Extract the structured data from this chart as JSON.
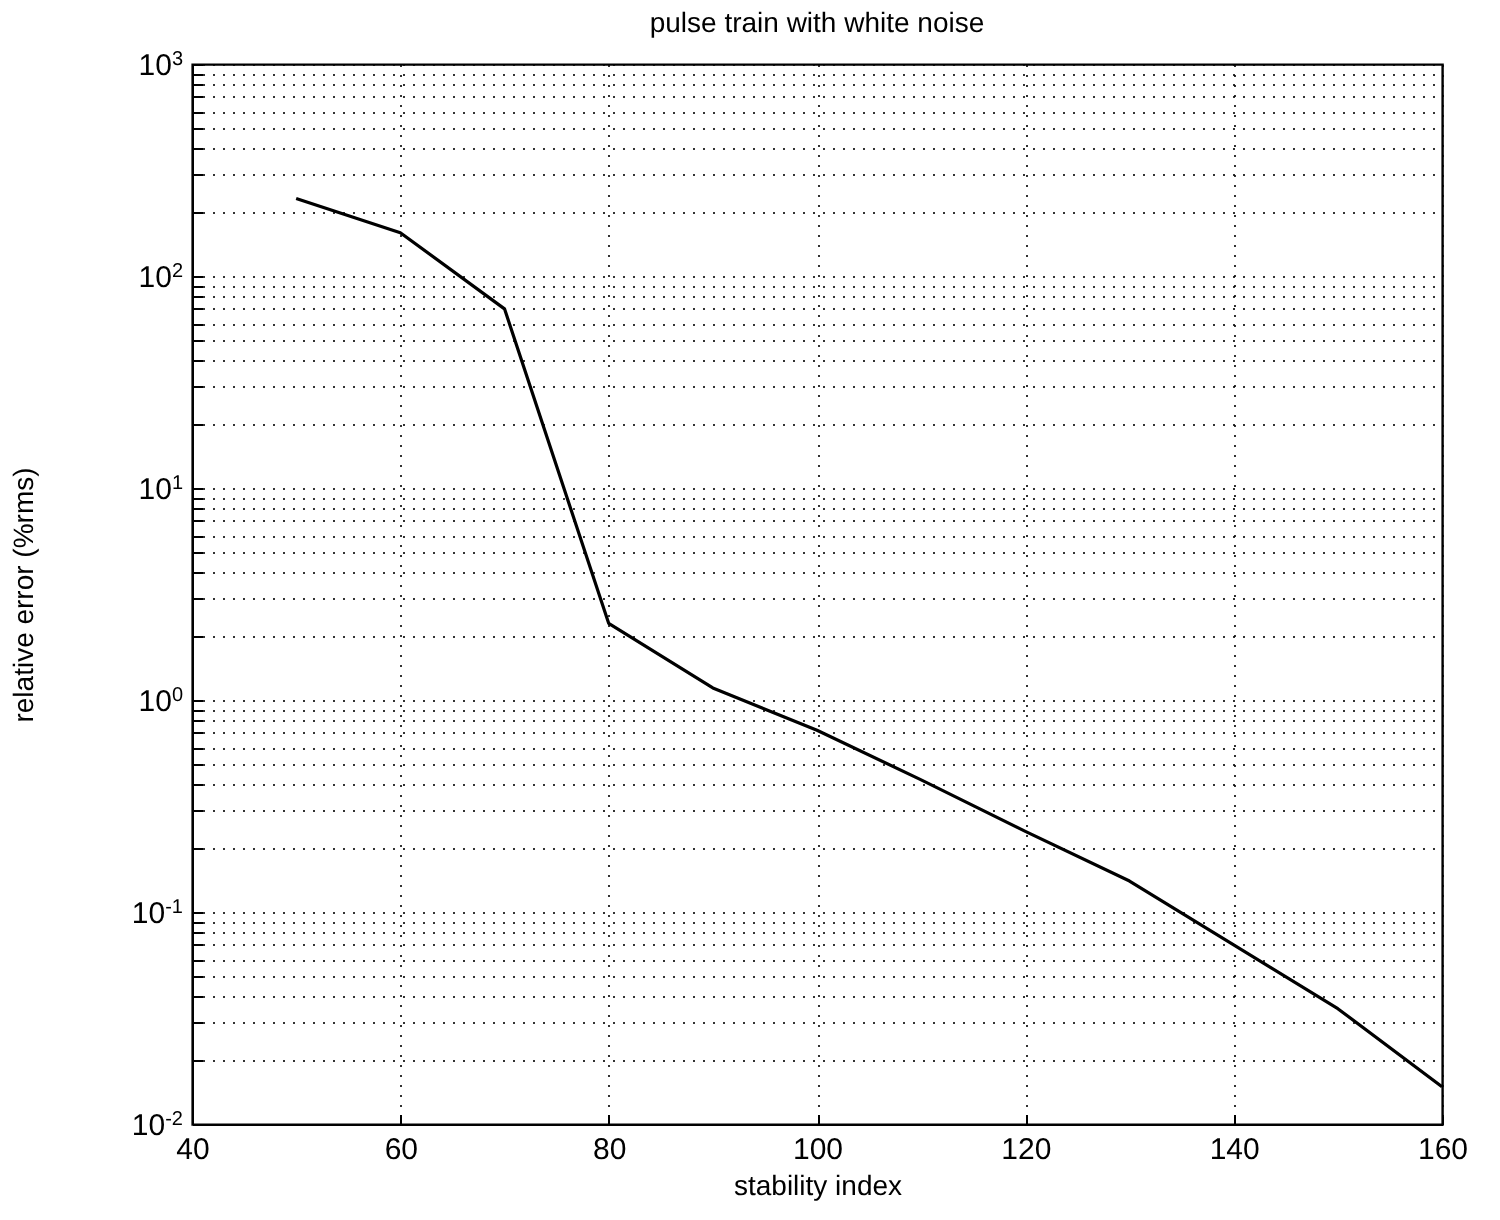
{
  "chart_data": {
    "type": "line",
    "title": "pulse train with white noise",
    "xlabel": "stability index",
    "ylabel": "relative error (%rms)",
    "x": [
      50,
      60,
      70,
      80,
      90,
      100,
      110,
      120,
      130,
      140,
      150,
      160
    ],
    "series": [
      {
        "color": "#000000",
        "values": [
          232,
          160,
          70,
          2.3,
          1.14,
          0.72,
          0.42,
          0.24,
          0.14,
          0.07,
          0.035,
          0.015
        ]
      }
    ],
    "xlim": [
      40,
      160
    ],
    "xticks": [
      40,
      60,
      80,
      100,
      120,
      140,
      160
    ],
    "ylim": [
      0.01,
      1000
    ],
    "log": true,
    "grid": true,
    "line_style": "solid",
    "marker": "none",
    "yticks": [
      {
        "value": 0.01,
        "label": "10$^{-2}$"
      },
      {
        "value": 0.02,
        "label": null
      },
      {
        "value": 0.03,
        "label": null
      },
      {
        "value": 0.04,
        "label": null
      },
      {
        "value": 0.05,
        "label": null
      },
      {
        "value": 0.06,
        "label": null
      },
      {
        "value": 0.07,
        "label": null
      },
      {
        "value": 0.08,
        "label": null
      },
      {
        "value": 0.09,
        "label": null
      },
      {
        "value": 0.1,
        "label": "10$^{-1}$"
      },
      {
        "value": 0.2,
        "label": null
      },
      {
        "value": 0.3,
        "label": null
      },
      {
        "value": 0.4,
        "label": null
      },
      {
        "value": 0.5,
        "label": null
      },
      {
        "value": 0.6,
        "label": null
      },
      {
        "value": 0.7,
        "label": null
      },
      {
        "value": 0.8,
        "label": null
      },
      {
        "value": 0.9,
        "label": null
      },
      {
        "value": 1,
        "label": "10$^{0}$"
      },
      {
        "value": 2,
        "label": null
      },
      {
        "value": 3,
        "label": null
      },
      {
        "value": 4,
        "label": null
      },
      {
        "value": 5,
        "label": null
      },
      {
        "value": 6,
        "label": null
      },
      {
        "value": 7,
        "label": null
      },
      {
        "value": 8,
        "label": null
      },
      {
        "value": 9,
        "label": null
      },
      {
        "value": 10,
        "label": "10$^{1}$"
      },
      {
        "value": 20,
        "label": null
      },
      {
        "value": 30,
        "label": null
      },
      {
        "value": 40,
        "label": null
      },
      {
        "value": 50,
        "label": null
      },
      {
        "value": 60,
        "label": null
      },
      {
        "value": 70,
        "label": null
      },
      {
        "value": 80,
        "label": null
      },
      {
        "value": 90,
        "label": null
      },
      {
        "value": 100,
        "label": "10$^{2}$"
      },
      {
        "value": 200,
        "label": null
      },
      {
        "value": 300,
        "label": null
      },
      {
        "value": 400,
        "label": null
      },
      {
        "value": 500,
        "label": null
      },
      {
        "value": 600,
        "label": null
      },
      {
        "value": 700,
        "label": null
      },
      {
        "value": 800,
        "label": null
      },
      {
        "value": 900,
        "label": null
      },
      {
        "value": 1000,
        "label": "10$^{3}$"
      }
    ]
  }
}
